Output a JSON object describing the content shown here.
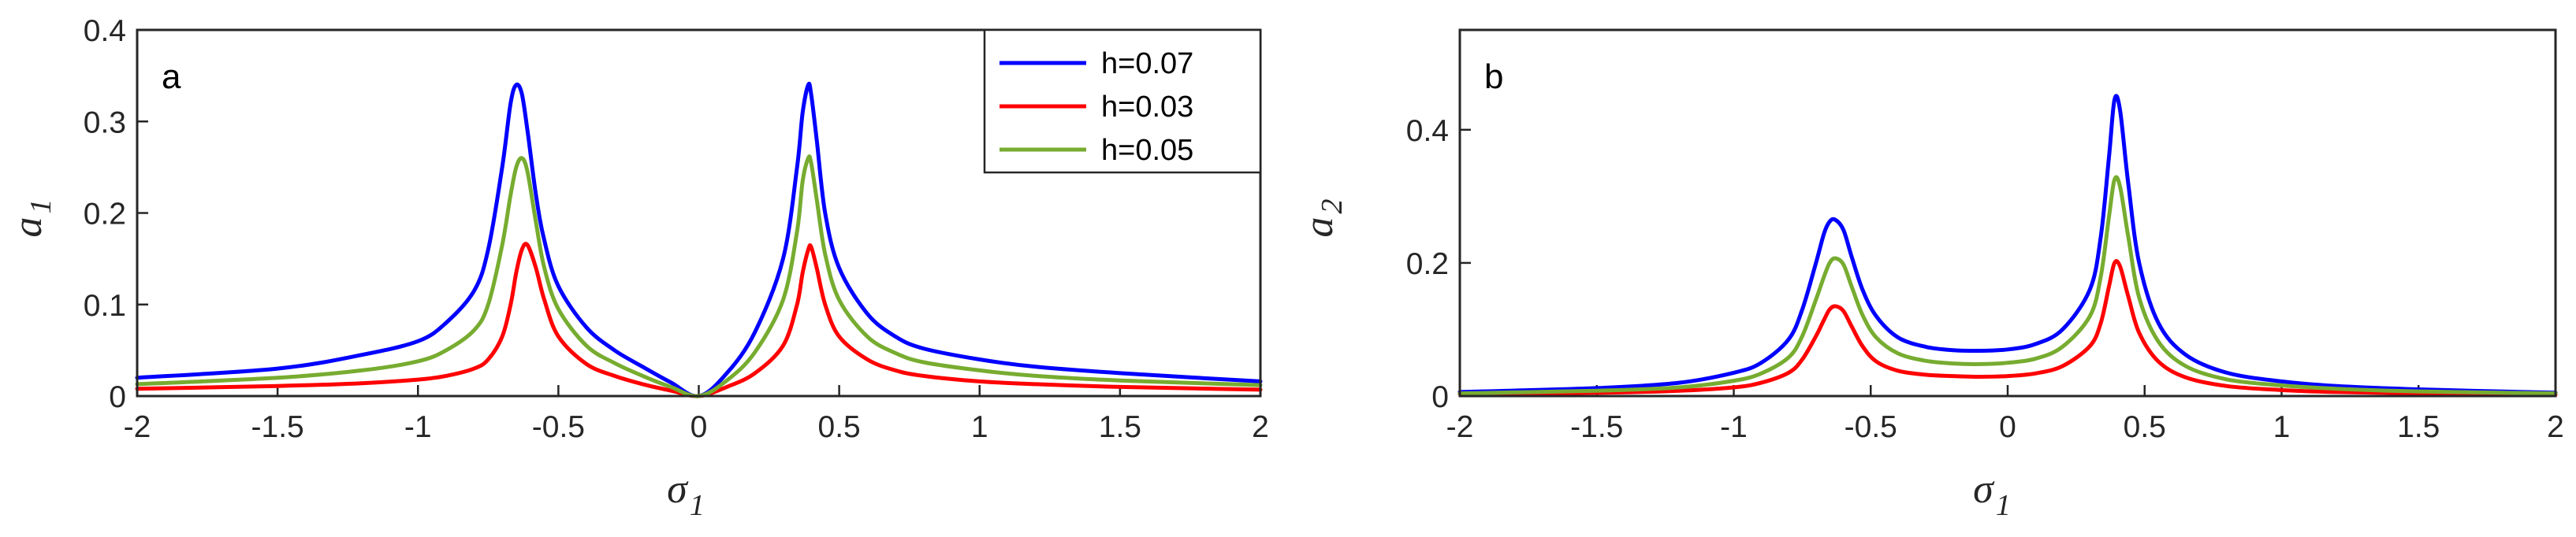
{
  "chart_data": [
    {
      "type": "line",
      "panel": "a",
      "xlabel": "σ",
      "xlabel_sub": "1",
      "ylabel": "a",
      "ylabel_sub": "1",
      "xlim": [
        -2,
        2
      ],
      "ylim": [
        0,
        0.4
      ],
      "xticks": [
        "-2",
        "-1.5",
        "-1",
        "-0.5",
        "0",
        "0.5",
        "1",
        "1.5",
        "2"
      ],
      "xtick_values": [
        -2,
        -1.5,
        -1,
        -0.5,
        0,
        0.5,
        1,
        1.5,
        2
      ],
      "yticks": [
        "0",
        "0.1",
        "0.2",
        "0.3",
        "0.4"
      ],
      "ytick_values": [
        0,
        0.1,
        0.2,
        0.3,
        0.4
      ],
      "grid": false,
      "legend": "top-right",
      "series": [
        {
          "name": "h=0.07",
          "color": "#0000ff",
          "x": [
            -2,
            -1.5,
            -1.2,
            -1.0,
            -0.9,
            -0.8,
            -0.75,
            -0.7,
            -0.67,
            -0.65,
            -0.63,
            -0.61,
            -0.58,
            -0.55,
            -0.5,
            -0.4,
            -0.3,
            -0.2,
            -0.1,
            0,
            0.1,
            0.2,
            0.3,
            0.35,
            0.37,
            0.39,
            0.4,
            0.42,
            0.45,
            0.5,
            0.6,
            0.7,
            0.8,
            1.0,
            1.2,
            1.5,
            2
          ],
          "y": [
            0.02,
            0.03,
            0.045,
            0.06,
            0.08,
            0.115,
            0.16,
            0.25,
            0.32,
            0.34,
            0.33,
            0.29,
            0.22,
            0.17,
            0.12,
            0.075,
            0.05,
            0.032,
            0.015,
            0,
            0.025,
            0.07,
            0.15,
            0.25,
            0.31,
            0.34,
            0.33,
            0.28,
            0.2,
            0.14,
            0.09,
            0.065,
            0.052,
            0.04,
            0.032,
            0.025,
            0.016
          ]
        },
        {
          "name": "h=0.03",
          "color": "#ff0000",
          "x": [
            -2,
            -1.5,
            -1.2,
            -1.0,
            -0.9,
            -0.8,
            -0.75,
            -0.7,
            -0.67,
            -0.65,
            -0.63,
            -0.61,
            -0.58,
            -0.55,
            -0.5,
            -0.4,
            -0.3,
            -0.2,
            -0.1,
            0,
            0.1,
            0.2,
            0.3,
            0.35,
            0.37,
            0.39,
            0.4,
            0.42,
            0.45,
            0.5,
            0.6,
            0.7,
            0.8,
            1.0,
            1.2,
            1.5,
            2
          ],
          "y": [
            0.008,
            0.011,
            0.014,
            0.018,
            0.022,
            0.03,
            0.04,
            0.065,
            0.1,
            0.135,
            0.16,
            0.165,
            0.14,
            0.105,
            0.065,
            0.035,
            0.022,
            0.013,
            0.006,
            0,
            0.01,
            0.025,
            0.055,
            0.1,
            0.135,
            0.16,
            0.163,
            0.14,
            0.1,
            0.065,
            0.04,
            0.028,
            0.022,
            0.016,
            0.013,
            0.01,
            0.007
          ]
        },
        {
          "name": "h=0.05",
          "color": "#77ac30",
          "x": [
            -2,
            -1.5,
            -1.2,
            -1.0,
            -0.9,
            -0.8,
            -0.75,
            -0.7,
            -0.67,
            -0.65,
            -0.63,
            -0.61,
            -0.58,
            -0.55,
            -0.5,
            -0.4,
            -0.3,
            -0.2,
            -0.1,
            0,
            0.1,
            0.2,
            0.3,
            0.35,
            0.37,
            0.39,
            0.4,
            0.42,
            0.45,
            0.5,
            0.6,
            0.7,
            0.8,
            1.0,
            1.2,
            1.5,
            2
          ],
          "y": [
            0.013,
            0.02,
            0.028,
            0.038,
            0.05,
            0.072,
            0.1,
            0.165,
            0.22,
            0.25,
            0.26,
            0.245,
            0.19,
            0.14,
            0.095,
            0.055,
            0.036,
            0.022,
            0.01,
            0,
            0.017,
            0.048,
            0.105,
            0.18,
            0.235,
            0.26,
            0.255,
            0.215,
            0.155,
            0.105,
            0.065,
            0.047,
            0.037,
            0.028,
            0.022,
            0.017,
            0.012
          ]
        }
      ]
    },
    {
      "type": "line",
      "panel": "b",
      "xlabel": "σ",
      "xlabel_sub": "1",
      "ylabel": "a",
      "ylabel_sub": "2",
      "xlim": [
        -2,
        2
      ],
      "ylim": [
        0,
        0.55
      ],
      "xticks": [
        "-2",
        "-1.5",
        "-1",
        "-0.5",
        "0",
        "0.5",
        "1",
        "1.5",
        "2"
      ],
      "xtick_values": [
        -2,
        -1.5,
        -1,
        -0.5,
        0,
        0.5,
        1,
        1.5,
        2
      ],
      "yticks": [
        "0",
        "0.2",
        "0.4"
      ],
      "ytick_values": [
        0,
        0.2,
        0.4
      ],
      "grid": false,
      "series": [
        {
          "name": "h=0.07",
          "color": "#0000ff",
          "x": [
            -2,
            -1.5,
            -1.2,
            -1.0,
            -0.9,
            -0.8,
            -0.75,
            -0.7,
            -0.67,
            -0.65,
            -0.63,
            -0.6,
            -0.57,
            -0.53,
            -0.48,
            -0.4,
            -0.3,
            -0.2,
            -0.1,
            0,
            0.1,
            0.2,
            0.3,
            0.34,
            0.37,
            0.39,
            0.41,
            0.44,
            0.48,
            0.55,
            0.65,
            0.8,
            1.0,
            1.2,
            1.5,
            2
          ],
          "y": [
            0.006,
            0.012,
            0.02,
            0.035,
            0.05,
            0.085,
            0.13,
            0.2,
            0.245,
            0.262,
            0.265,
            0.25,
            0.21,
            0.16,
            0.12,
            0.088,
            0.074,
            0.069,
            0.068,
            0.07,
            0.078,
            0.1,
            0.16,
            0.24,
            0.36,
            0.445,
            0.43,
            0.32,
            0.2,
            0.11,
            0.062,
            0.035,
            0.022,
            0.015,
            0.01,
            0.005
          ]
        },
        {
          "name": "h=0.03",
          "color": "#ff0000",
          "x": [
            -2,
            -1.5,
            -1.2,
            -1.0,
            -0.9,
            -0.8,
            -0.75,
            -0.7,
            -0.67,
            -0.65,
            -0.63,
            -0.6,
            -0.57,
            -0.53,
            -0.48,
            -0.4,
            -0.3,
            -0.2,
            -0.1,
            0,
            0.1,
            0.2,
            0.3,
            0.34,
            0.37,
            0.39,
            0.41,
            0.44,
            0.48,
            0.55,
            0.65,
            0.8,
            1.0,
            1.2,
            1.5,
            2
          ],
          "y": [
            0.003,
            0.005,
            0.008,
            0.013,
            0.02,
            0.035,
            0.055,
            0.09,
            0.115,
            0.13,
            0.135,
            0.128,
            0.105,
            0.075,
            0.052,
            0.038,
            0.032,
            0.03,
            0.029,
            0.03,
            0.034,
            0.045,
            0.075,
            0.11,
            0.165,
            0.2,
            0.195,
            0.15,
            0.095,
            0.052,
            0.028,
            0.015,
            0.009,
            0.006,
            0.004,
            0.002
          ]
        },
        {
          "name": "h=0.05",
          "color": "#77ac30",
          "x": [
            -2,
            -1.5,
            -1.2,
            -1.0,
            -0.9,
            -0.8,
            -0.75,
            -0.7,
            -0.67,
            -0.65,
            -0.63,
            -0.6,
            -0.57,
            -0.53,
            -0.48,
            -0.4,
            -0.3,
            -0.2,
            -0.1,
            0,
            0.1,
            0.2,
            0.3,
            0.34,
            0.37,
            0.39,
            0.41,
            0.44,
            0.48,
            0.55,
            0.65,
            0.8,
            1.0,
            1.2,
            1.5,
            2
          ],
          "y": [
            0.004,
            0.008,
            0.013,
            0.023,
            0.034,
            0.058,
            0.09,
            0.145,
            0.18,
            0.2,
            0.207,
            0.198,
            0.165,
            0.122,
            0.088,
            0.064,
            0.053,
            0.049,
            0.048,
            0.05,
            0.056,
            0.074,
            0.12,
            0.18,
            0.27,
            0.325,
            0.315,
            0.24,
            0.148,
            0.082,
            0.045,
            0.025,
            0.016,
            0.011,
            0.007,
            0.004
          ]
        }
      ]
    }
  ]
}
